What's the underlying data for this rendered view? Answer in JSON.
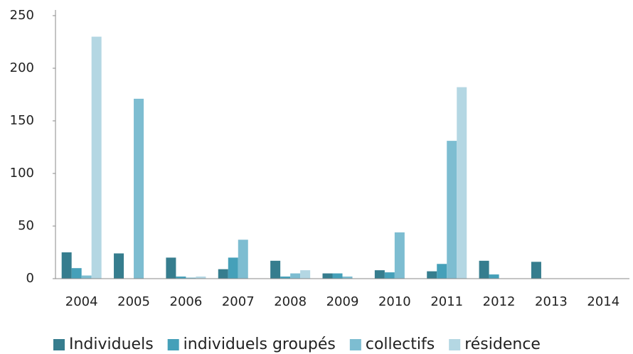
{
  "chart_data": {
    "type": "bar",
    "categories": [
      "2004",
      "2005",
      "2006",
      "2007",
      "2008",
      "2009",
      "2010",
      "2011",
      "2012",
      "2013",
      "2014"
    ],
    "series": [
      {
        "name": "Individuels",
        "color": "#367d8e",
        "values": [
          25,
          24,
          20,
          9,
          17,
          5,
          8,
          7,
          17,
          16,
          0
        ]
      },
      {
        "name": "individuels groupés",
        "color": "#45a0b9",
        "values": [
          10,
          0,
          2,
          20,
          2,
          5,
          6,
          14,
          4,
          0,
          0
        ]
      },
      {
        "name": "collectifs",
        "color": "#7dbdd1",
        "values": [
          3,
          171,
          1,
          37,
          5,
          2,
          44,
          131,
          0,
          0,
          0
        ]
      },
      {
        "name": "résidence",
        "color": "#b4d7e3",
        "values": [
          230,
          0,
          2,
          0,
          8,
          0,
          0,
          182,
          0,
          0,
          0
        ]
      }
    ],
    "ylim": [
      0,
      250
    ],
    "yticks": [
      0,
      50,
      100,
      150,
      200,
      250
    ],
    "grid": false,
    "legend": "bottom"
  }
}
